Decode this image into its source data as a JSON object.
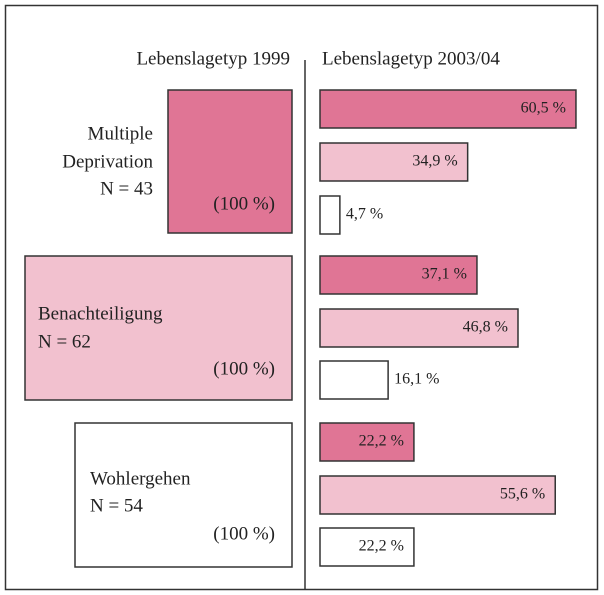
{
  "chart_data": {
    "type": "bar",
    "left_title": "Lebenslagetyp 1999",
    "right_title": "Lebenslagetyp 2003/04",
    "colors": [
      "#e07595",
      "#f2c1cf",
      "#ffffff"
    ],
    "xlim": [
      0,
      65
    ],
    "groups": [
      {
        "label_lines": [
          "Multiple",
          "Deprivation"
        ],
        "n_label": "N = 43",
        "share_label": "(100 %)",
        "values": [
          60.5,
          34.9,
          4.7
        ],
        "value_labels": [
          "60,5 %",
          "34,9 %",
          "4,7 %"
        ]
      },
      {
        "label_lines": [
          "Benachteiligung"
        ],
        "n_label": "N = 62",
        "share_label": "(100 %)",
        "values": [
          37.1,
          46.8,
          16.1
        ],
        "value_labels": [
          "37,1 %",
          "46,8 %",
          "16,1 %"
        ]
      },
      {
        "label_lines": [
          "Wohlergehen"
        ],
        "n_label": "N = 54",
        "share_label": "(100 %)",
        "values": [
          22.2,
          55.6,
          22.2
        ],
        "value_labels": [
          "22,2 %",
          "55,6 %",
          "22,2 %"
        ]
      }
    ]
  }
}
